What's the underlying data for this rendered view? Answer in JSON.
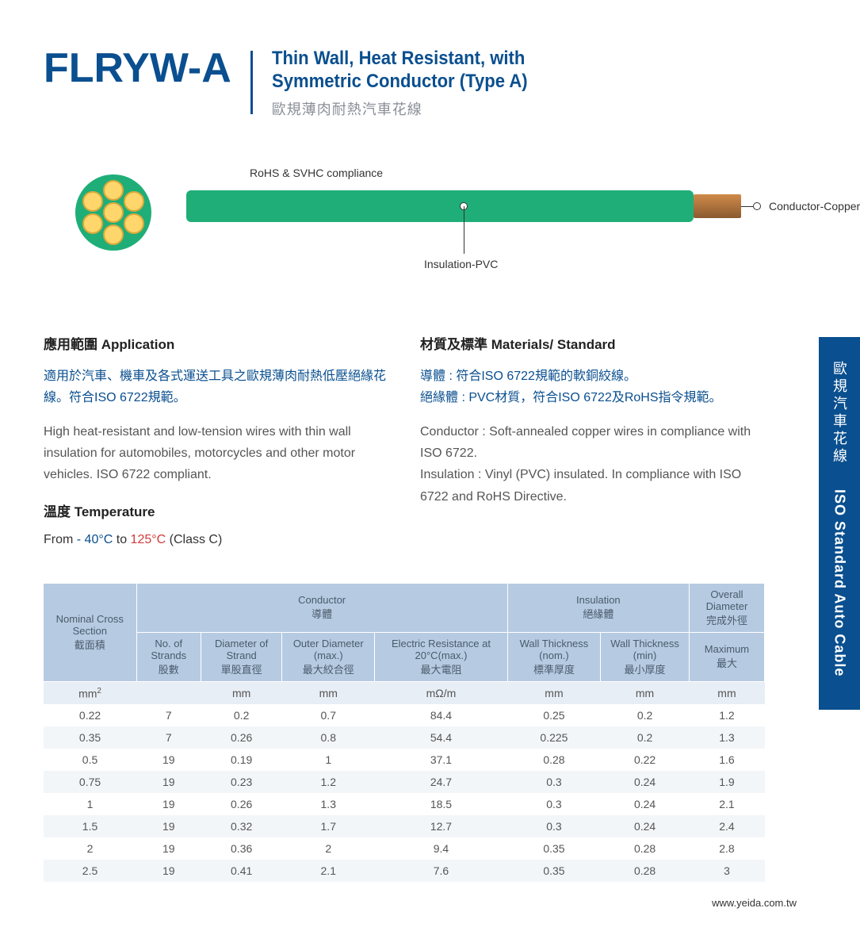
{
  "header": {
    "code": "FLRYW-A",
    "subtitle_en_line1": "Thin Wall, Heat Resistant, with",
    "subtitle_en_line2": "Symmetric Conductor (Type A)",
    "subtitle_zh": "歐規薄肉耐熱汽車花線"
  },
  "diagram": {
    "rohs_label": "RoHS & SVHC compliance",
    "insulation_label": "Insulation-PVC",
    "conductor_label": "Conductor-Copper",
    "colors": {
      "insulation": "#1fae78",
      "strand_fill": "#ffd66b",
      "strand_border": "#d9a93b",
      "copper": "#b57a3f"
    }
  },
  "sections": {
    "application": {
      "heading": "應用範圍 Application",
      "zh": "適用於汽車、機車及各式運送工具之歐規薄肉耐熱低壓絕緣花線。符合ISO 6722規範。",
      "en": "High heat-resistant and low-tension wires with thin wall insulation for automobiles, motorcycles and other motor vehicles. ISO 6722 compliant."
    },
    "temperature": {
      "heading": "溫度 Temperature",
      "prefix": "From ",
      "cold": "- 40°C",
      "mid": " to ",
      "hot": "125°C",
      "suffix": " (Class C)"
    },
    "materials": {
      "heading": "材質及標準 Materials/ Standard",
      "zh_line1": "導體 : 符合ISO 6722規範的軟銅絞線。",
      "zh_line2": "絕緣體 : PVC材質，符合ISO 6722及RoHS指令規範。",
      "en_line1": "Conductor : Soft-annealed copper wires in compliance with  ISO 6722.",
      "en_line2": "Insulation : Vinyl (PVC) insulated. In compliance with ISO 6722 and RoHS Directive."
    }
  },
  "table": {
    "header_colors": {
      "bg": "#b6cbe2",
      "text": "#4a5a6a"
    },
    "row_colors": {
      "units": "#e8eef5",
      "odd": "#f3f6f9",
      "even": "#ffffff"
    },
    "group_headers": {
      "nominal_en": "Nominal Cross Section",
      "nominal_zh": "截面積",
      "conductor_en": "Conductor",
      "conductor_zh": "導體",
      "insulation_en": "Insulation",
      "insulation_zh": "絕緣體",
      "overall_en": "Overall Diameter",
      "overall_zh": "完成外徑"
    },
    "sub_headers": {
      "strands_en": "No. of Strands",
      "strands_zh": "股數",
      "dia_strand_en": "Diameter of  Strand",
      "dia_strand_zh": "單股直徑",
      "outer_en": "Outer Diameter (max.)",
      "outer_zh": "最大絞合徑",
      "resist_en": "Electric Resistance at 20°C(max.)",
      "resist_zh": "最大電阻",
      "wall_nom_en": "Wall Thickness (nom.)",
      "wall_nom_zh": "標準厚度",
      "wall_min_en": "Wall Thickness (min)",
      "wall_min_zh": "最小厚度",
      "max_en": "Maximum",
      "max_zh": "最大"
    },
    "units": [
      "mm²",
      "",
      "mm",
      "mm",
      "mΩ/m",
      "mm",
      "mm",
      "mm"
    ],
    "rows": [
      [
        "0.22",
        "7",
        "0.2",
        "0.7",
        "84.4",
        "0.25",
        "0.2",
        "1.2"
      ],
      [
        "0.35",
        "7",
        "0.26",
        "0.8",
        "54.4",
        "0.225",
        "0.2",
        "1.3"
      ],
      [
        "0.5",
        "19",
        "0.19",
        "1",
        "37.1",
        "0.28",
        "0.22",
        "1.6"
      ],
      [
        "0.75",
        "19",
        "0.23",
        "1.2",
        "24.7",
        "0.3",
        "0.24",
        "1.9"
      ],
      [
        "1",
        "19",
        "0.26",
        "1.3",
        "18.5",
        "0.3",
        "0.24",
        "2.1"
      ],
      [
        "1.5",
        "19",
        "0.32",
        "1.7",
        "12.7",
        "0.3",
        "0.24",
        "2.4"
      ],
      [
        "2",
        "19",
        "0.36",
        "2",
        "9.4",
        "0.35",
        "0.28",
        "2.8"
      ],
      [
        "2.5",
        "19",
        "0.41",
        "2.1",
        "7.6",
        "0.35",
        "0.28",
        "3"
      ]
    ]
  },
  "side_tab": {
    "zh": "歐規汽車花線",
    "en": "ISO Standard Auto Cable",
    "bg": "#0a4f8f"
  },
  "footer": {
    "url": "www.yeida.com.tw"
  }
}
